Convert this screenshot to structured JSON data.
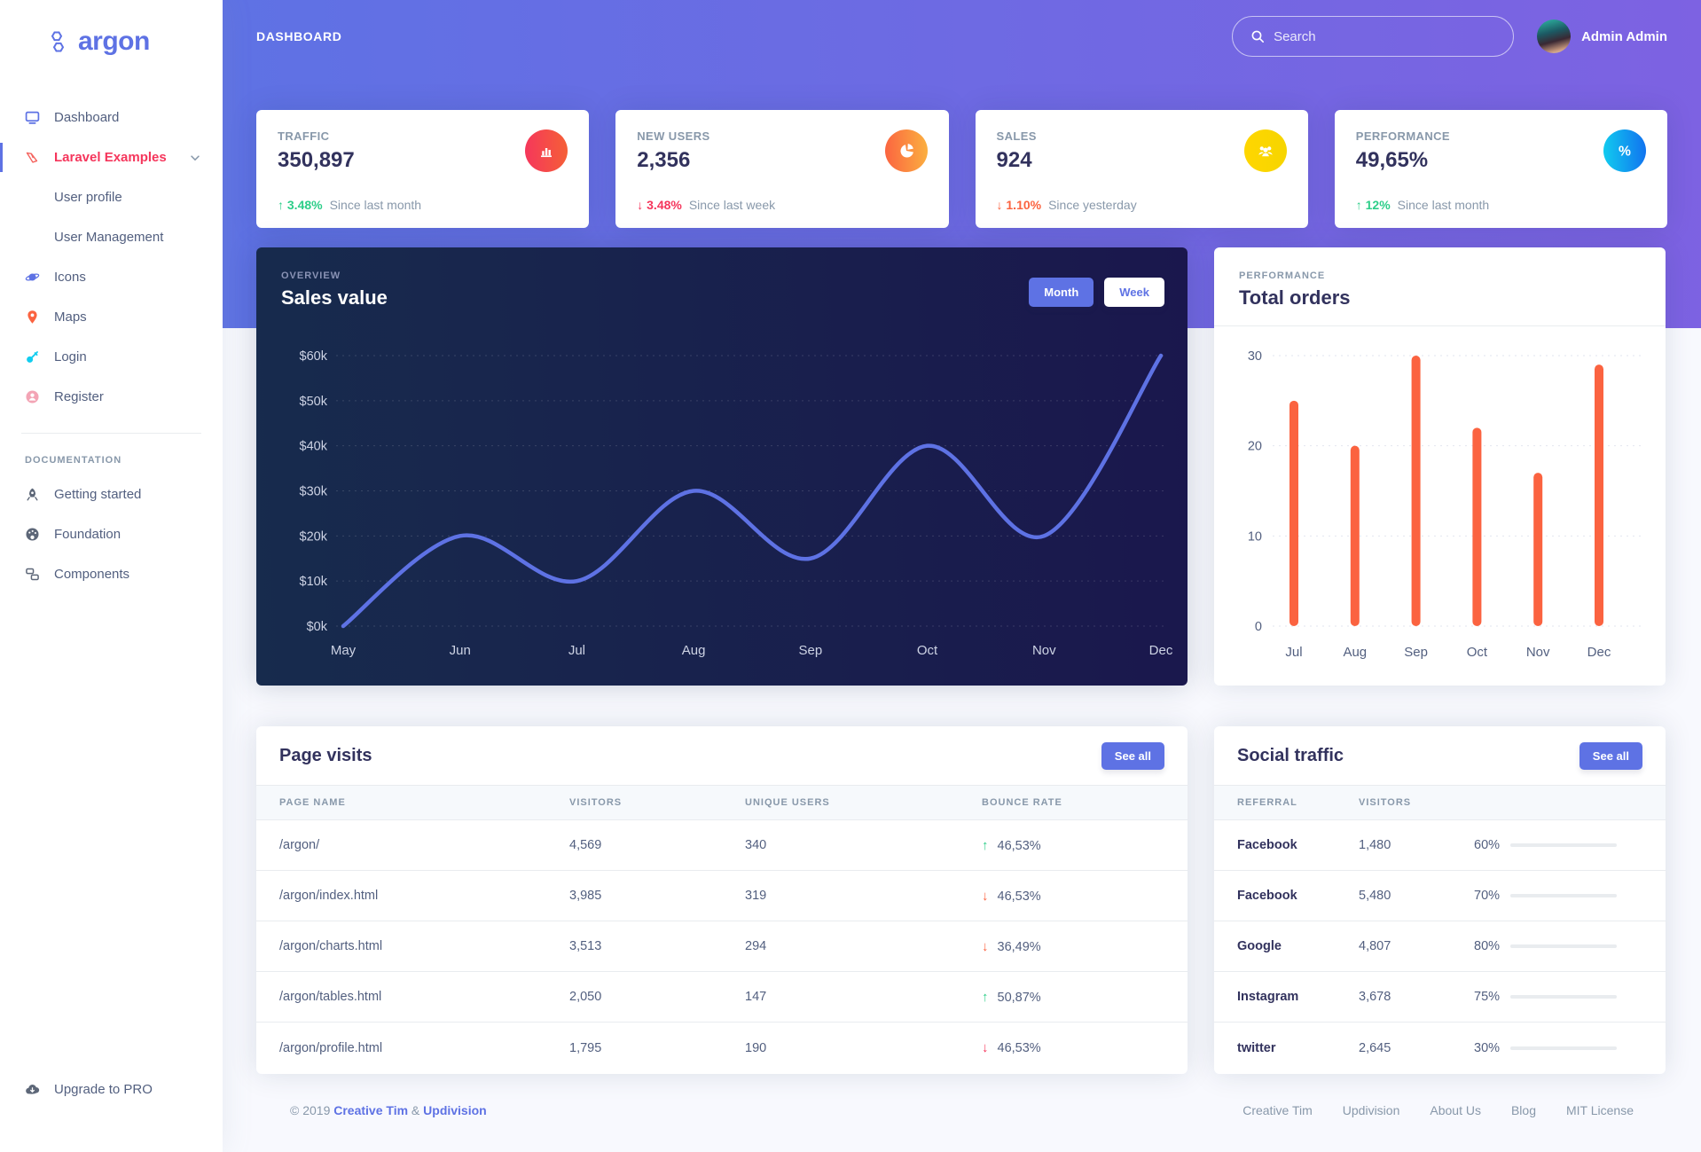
{
  "brand": {
    "name": "argon"
  },
  "sidebar": {
    "items": [
      {
        "label": "Dashboard",
        "icon": "tv",
        "color": "#5e72e4",
        "active": false,
        "sub": false
      },
      {
        "label": "Laravel Examples",
        "icon": "laravel",
        "color": "#f4645f",
        "active": true,
        "sub": false,
        "chevron": true
      },
      {
        "label": "User profile",
        "icon": "",
        "color": "",
        "active": false,
        "sub": true
      },
      {
        "label": "User Management",
        "icon": "",
        "color": "",
        "active": false,
        "sub": true
      },
      {
        "label": "Icons",
        "icon": "planet",
        "color": "#5e72e4",
        "active": false,
        "sub": false
      },
      {
        "label": "Maps",
        "icon": "pin",
        "color": "#fb6340",
        "active": false,
        "sub": false
      },
      {
        "label": "Login",
        "icon": "key",
        "color": "#11cdef",
        "active": false,
        "sub": false
      },
      {
        "label": "Register",
        "icon": "user-circle",
        "color": "#f3a4b5",
        "active": false,
        "sub": false
      }
    ],
    "section_title": "DOCUMENTATION",
    "doc_items": [
      {
        "label": "Getting started",
        "icon": "rocket",
        "color": "#5d6778"
      },
      {
        "label": "Foundation",
        "icon": "palette",
        "color": "#5d6778"
      },
      {
        "label": "Components",
        "icon": "components",
        "color": "#5d6778"
      }
    ],
    "upgrade": {
      "label": "Upgrade to PRO",
      "icon": "cloud-download",
      "color": "#5d6778"
    }
  },
  "header": {
    "page_title": "DASHBOARD",
    "search_placeholder": "Search",
    "user_name": "Admin Admin"
  },
  "stat_cards": [
    {
      "title": "TRAFFIC",
      "value": "350,897",
      "icon": "chart-bar",
      "icon_bg": [
        "#f5365c",
        "#f56036"
      ],
      "delta": "3.48%",
      "direction": "up",
      "delta_color": "#2dce89",
      "note": "Since last month"
    },
    {
      "title": "NEW USERS",
      "value": "2,356",
      "icon": "chart-pie",
      "icon_bg": [
        "#fb6340",
        "#fbb140"
      ],
      "delta": "3.48%",
      "direction": "down",
      "delta_color": "#f5365c",
      "note": "Since last week"
    },
    {
      "title": "SALES",
      "value": "924",
      "icon": "users",
      "icon_bg": [
        "#ffd600",
        "#f6d500"
      ],
      "delta": "1.10%",
      "direction": "down",
      "delta_color": "#fb6340",
      "note": "Since yesterday"
    },
    {
      "title": "PERFORMANCE",
      "value": "49,65%",
      "icon": "percent",
      "icon_bg": [
        "#11cdef",
        "#1171ef"
      ],
      "delta": "12%",
      "direction": "up",
      "delta_color": "#2dce89",
      "note": "Since last month"
    }
  ],
  "chart_data": [
    {
      "id": "sales_value",
      "type": "line",
      "eyebrow": "OVERVIEW",
      "title": "Sales value",
      "buttons": [
        "Month",
        "Week"
      ],
      "active_button": "Month",
      "x": [
        "May",
        "Jun",
        "Jul",
        "Aug",
        "Sep",
        "Oct",
        "Nov",
        "Dec"
      ],
      "values": [
        0,
        20,
        10,
        30,
        15,
        40,
        20,
        60
      ],
      "ylim": [
        0,
        60
      ],
      "y_tick_step": 10,
      "y_tick_format": "$%vk",
      "line_color": "#5e72e4",
      "grid": "dotted",
      "legend": "none"
    },
    {
      "id": "total_orders",
      "type": "bar",
      "eyebrow": "PERFORMANCE",
      "title": "Total orders",
      "categories": [
        "Jul",
        "Aug",
        "Sep",
        "Oct",
        "Nov",
        "Dec"
      ],
      "values": [
        25,
        20,
        30,
        22,
        17,
        29
      ],
      "ylim": [
        0,
        30
      ],
      "y_ticks": [
        30,
        20,
        10,
        0
      ],
      "bar_color": "#fb6340",
      "grid": "dotted",
      "legend": "none"
    }
  ],
  "page_visits": {
    "title": "Page visits",
    "see_all": "See all",
    "columns": [
      "PAGE NAME",
      "VISITORS",
      "UNIQUE USERS",
      "BOUNCE RATE"
    ],
    "rows": [
      {
        "page": "/argon/",
        "visitors": "4,569",
        "unique": "340",
        "direction": "up",
        "arrow_color": "#2dce89",
        "rate": "46,53%"
      },
      {
        "page": "/argon/index.html",
        "visitors": "3,985",
        "unique": "319",
        "direction": "down",
        "arrow_color": "#fb6340",
        "rate": "46,53%"
      },
      {
        "page": "/argon/charts.html",
        "visitors": "3,513",
        "unique": "294",
        "direction": "down",
        "arrow_color": "#fb6340",
        "rate": "36,49%"
      },
      {
        "page": "/argon/tables.html",
        "visitors": "2,050",
        "unique": "147",
        "direction": "up",
        "arrow_color": "#2dce89",
        "rate": "50,87%"
      },
      {
        "page": "/argon/profile.html",
        "visitors": "1,795",
        "unique": "190",
        "direction": "down",
        "arrow_color": "#f5365c",
        "rate": "46,53%"
      }
    ]
  },
  "social_traffic": {
    "title": "Social traffic",
    "see_all": "See all",
    "columns": [
      "REFERRAL",
      "VISITORS"
    ],
    "rows": [
      {
        "referral": "Facebook",
        "visitors": "1,480",
        "percent": "60%",
        "value": 60,
        "bar": [
          "#f5365c",
          "#f56036"
        ]
      },
      {
        "referral": "Facebook",
        "visitors": "5,480",
        "percent": "70%",
        "value": 70,
        "bar": [
          "#2dce89",
          "#2dcecc"
        ]
      },
      {
        "referral": "Google",
        "visitors": "4,807",
        "percent": "80%",
        "value": 80,
        "bar": [
          "#5e72e4",
          "#825ee4"
        ]
      },
      {
        "referral": "Instagram",
        "visitors": "3,678",
        "percent": "75%",
        "value": 75,
        "bar": [
          "#11cdef",
          "#1171ef"
        ]
      },
      {
        "referral": "twitter",
        "visitors": "2,645",
        "percent": "30%",
        "value": 30,
        "bar": [
          "#fb6340",
          "#fbb140"
        ]
      }
    ]
  },
  "footer": {
    "copyright": "© 2019",
    "brand1": "Creative Tim",
    "amp": "&",
    "brand2": "Updivision",
    "links": [
      "Creative Tim",
      "Updivision",
      "About Us",
      "Blog",
      "MIT License"
    ]
  }
}
